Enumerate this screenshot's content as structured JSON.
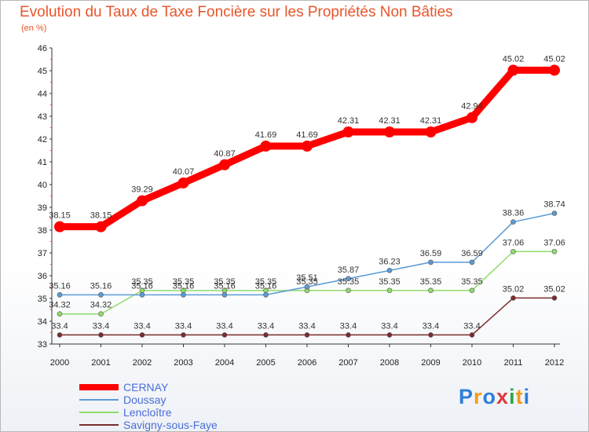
{
  "title": "Evolution du Taux de Taxe Foncière sur les Propriétés Non Bâties",
  "subtitle": "(en %)",
  "logo": {
    "letters": [
      "P",
      "r",
      "o",
      "x",
      "i",
      "t",
      "i"
    ],
    "colors": [
      "#2f7fd8",
      "#f29b1d",
      "#2f7fd8",
      "#e03a3a",
      "#2ba84a",
      "#f29b1d",
      "#2f7fd8"
    ]
  },
  "chart_data": {
    "type": "line",
    "title": "Evolution du Taux de Taxe Foncière sur les Propriétés Non Bâties",
    "ylabel": "(en %)",
    "x": [
      "2000",
      "2001",
      "2002",
      "2003",
      "2004",
      "2005",
      "2006",
      "2007",
      "2008",
      "2009",
      "2010",
      "2011",
      "2012"
    ],
    "ylim": [
      33,
      46
    ],
    "yticks": [
      33,
      34,
      35,
      36,
      37,
      38,
      39,
      40,
      41,
      42,
      43,
      44,
      45,
      46
    ],
    "grid": false,
    "legend": "bottom-left",
    "series": [
      {
        "name": "CERNAY",
        "color": "#ff0000",
        "values": [
          38.15,
          38.15,
          39.29,
          40.07,
          40.87,
          41.69,
          41.69,
          42.31,
          42.31,
          42.31,
          42.94,
          45.02,
          45.02
        ],
        "labels": [
          "38.15",
          "38.15",
          "39.29",
          "40.07",
          "40.87",
          "41.69",
          "41.69",
          "42.31",
          "42.31",
          "42.31",
          "42.94",
          "45.02",
          "45.02"
        ]
      },
      {
        "name": "Doussay",
        "color": "#5b9bd5",
        "values": [
          35.16,
          35.16,
          35.16,
          35.16,
          35.16,
          35.16,
          35.51,
          35.87,
          36.23,
          36.59,
          36.59,
          38.36,
          38.74
        ],
        "labels": [
          "35.16",
          "35.16",
          "35.16",
          "35.16",
          "35.16",
          "35.16",
          "35.51",
          "35.87",
          "36.23",
          "36.59",
          "36.59",
          "38.36",
          "38.74"
        ]
      },
      {
        "name": "Lencloître",
        "color": "#8fdc6a",
        "values": [
          34.32,
          34.32,
          35.35,
          35.35,
          35.35,
          35.35,
          35.35,
          35.35,
          35.35,
          35.35,
          35.35,
          37.06,
          37.06
        ],
        "labels": [
          "34.32",
          "34.32",
          "35.35",
          "35.35",
          "35.35",
          "35.35",
          "35.35",
          "35.35",
          "35.35",
          "35.35",
          "35.35",
          "37.06",
          "37.06"
        ]
      },
      {
        "name": "Savigny-sous-Faye",
        "color": "#7b2c2c",
        "values": [
          33.4,
          33.4,
          33.4,
          33.4,
          33.4,
          33.4,
          33.4,
          33.4,
          33.4,
          33.4,
          33.4,
          35.02,
          35.02
        ],
        "labels": [
          "33.4",
          "33.4",
          "33.4",
          "33.4",
          "33.4",
          "33.4",
          "33.4",
          "33.4",
          "33.4",
          "33.4",
          "33.4",
          "35.02",
          "35.02"
        ]
      }
    ]
  }
}
